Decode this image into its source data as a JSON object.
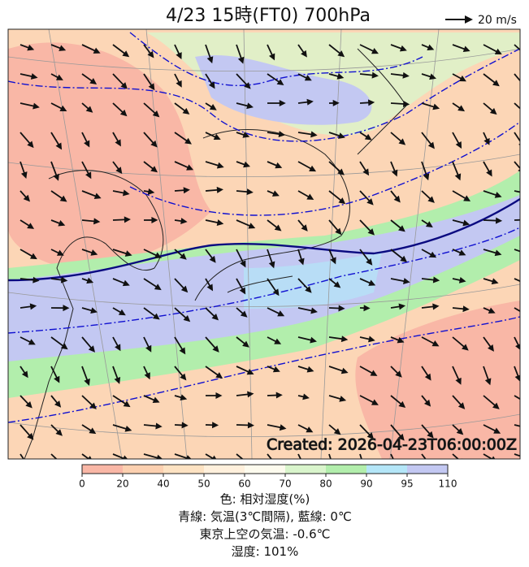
{
  "header": {
    "title": "4/23  15時(FT0)    700hPa",
    "wind_legend": "20 m/s"
  },
  "map": {
    "created": "Created: 2026-04-23T06:00:00Z"
  },
  "colorbar": {
    "levels": [
      0,
      20,
      40,
      50,
      60,
      70,
      80,
      90,
      95,
      110
    ],
    "colors": [
      "#f9b7a6",
      "#fcd0b0",
      "#fde2c2",
      "#fff0dc",
      "#fdfbee",
      "#d9f5cc",
      "#b2eeac",
      "#b4e6f8",
      "#c3c8f2"
    ]
  },
  "caption": [
    "色: 相対湿度(%)",
    "青線: 気温(3℃間隔), 藍線: 0℃",
    "東京上空の気温: -0.6℃",
    "湿度: 101%"
  ]
}
